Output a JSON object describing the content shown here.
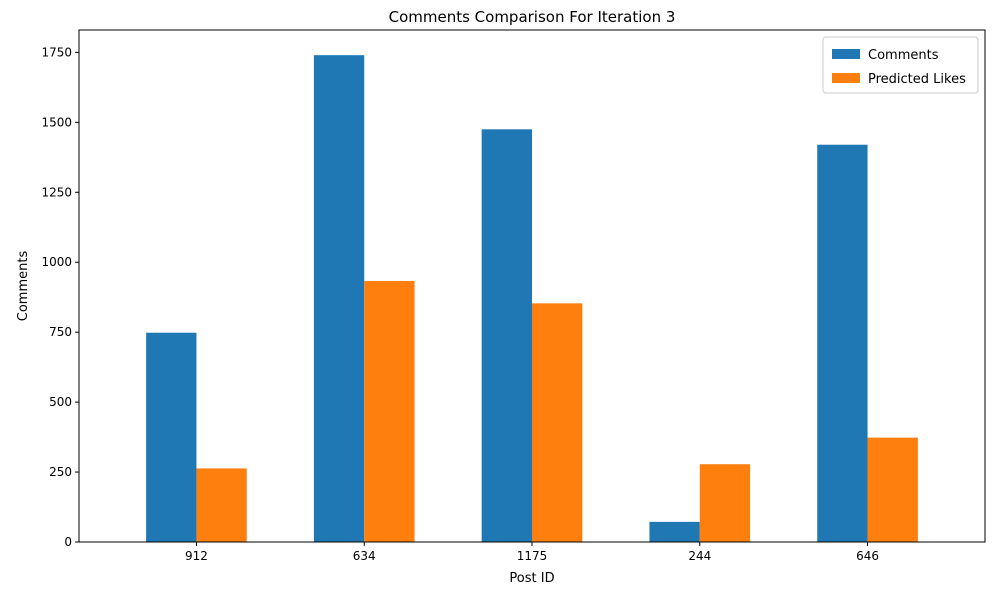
{
  "chart_data": {
    "type": "bar",
    "title": "Comments Comparison For Iteration 3",
    "xlabel": "Post ID",
    "ylabel": "Comments",
    "categories": [
      "912",
      "634",
      "1175",
      "244",
      "646"
    ],
    "series": [
      {
        "name": "Comments",
        "values": [
          748,
          1740,
          1475,
          72,
          1420
        ],
        "color": "#1f77b4"
      },
      {
        "name": "Predicted Likes",
        "values": [
          263,
          933,
          853,
          278,
          373
        ],
        "color": "#ff7f0e"
      }
    ],
    "ylim": [
      0,
      1830
    ],
    "yticks": [
      0,
      250,
      500,
      750,
      1000,
      1250,
      1500,
      1750
    ],
    "grid": false,
    "legend_position": "top-right"
  }
}
